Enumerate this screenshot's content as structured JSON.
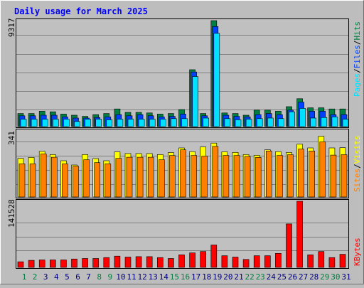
{
  "title": "Daily usage for March 2025",
  "colors": {
    "hits": "#008040",
    "files": "#0040ff",
    "pages": "#00e0ff",
    "visits": "#ffff00",
    "sites": "#ff8000",
    "kbytes": "#ff0000",
    "weekday_label": "#000080",
    "weekend_label": "#008040",
    "title": "#0000ff"
  },
  "chart_data": [
    {
      "type": "bar",
      "panel": "hits_files_pages",
      "y_tick_label": "9317",
      "ylim": [
        0,
        9317
      ],
      "legend": [
        {
          "text": "Pages",
          "color": "#00e0ff"
        },
        {
          "text": "/",
          "color": "#000000"
        },
        {
          "text": "Files",
          "color": "#0040ff"
        },
        {
          "text": "/",
          "color": "#000000"
        },
        {
          "text": "Hits",
          "color": "#008040"
        }
      ],
      "categories": [
        "1",
        "2",
        "3",
        "4",
        "5",
        "6",
        "7",
        "8",
        "9",
        "10",
        "11",
        "12",
        "13",
        "14",
        "15",
        "16",
        "17",
        "18",
        "19",
        "20",
        "21",
        "22",
        "23",
        "24",
        "25",
        "26",
        "27",
        "28",
        "29",
        "30",
        "31"
      ],
      "series": [
        {
          "name": "Hits",
          "values": [
            1150,
            1150,
            1350,
            1300,
            1100,
            1000,
            900,
            1050,
            1150,
            1550,
            1250,
            1250,
            1200,
            1100,
            1150,
            1500,
            5000,
            1150,
            9317,
            1200,
            1150,
            1000,
            1450,
            1450,
            1350,
            1750,
            2450,
            1650,
            1650,
            1550,
            1550
          ]
        },
        {
          "name": "Files",
          "values": [
            950,
            950,
            1000,
            1000,
            850,
            750,
            750,
            800,
            850,
            1050,
            950,
            1050,
            950,
            850,
            900,
            1100,
            4800,
            950,
            8800,
            1000,
            900,
            850,
            1050,
            1150,
            1050,
            1450,
            2150,
            1350,
            1350,
            1050,
            1050
          ]
        },
        {
          "name": "Pages",
          "values": [
            650,
            650,
            650,
            650,
            650,
            450,
            650,
            650,
            600,
            650,
            650,
            650,
            650,
            650,
            700,
            700,
            4400,
            750,
            8200,
            700,
            600,
            650,
            700,
            750,
            700,
            1300,
            1600,
            750,
            800,
            850,
            650
          ]
        }
      ]
    },
    {
      "type": "bar",
      "panel": "visits_sites",
      "y_tick_label": "341",
      "ylim": [
        0,
        341
      ],
      "legend": [
        {
          "text": "Sites",
          "color": "#ff8000"
        },
        {
          "text": "/",
          "color": "#000000"
        },
        {
          "text": "Visits",
          "color": "#ffff00"
        }
      ],
      "categories": [
        "1",
        "2",
        "3",
        "4",
        "5",
        "6",
        "7",
        "8",
        "9",
        "10",
        "11",
        "12",
        "13",
        "14",
        "15",
        "16",
        "17",
        "18",
        "19",
        "20",
        "21",
        "22",
        "23",
        "24",
        "25",
        "26",
        "27",
        "28",
        "29",
        "30",
        "31"
      ],
      "series": [
        {
          "name": "Visits",
          "values": [
            199,
            204,
            235,
            219,
            187,
            165,
            219,
            198,
            187,
            233,
            224,
            224,
            224,
            219,
            229,
            253,
            234,
            258,
            278,
            233,
            230,
            219,
            215,
            243,
            234,
            230,
            272,
            253,
            313,
            253,
            254
          ]
        },
        {
          "name": "Sites",
          "values": [
            171,
            171,
            222,
            205,
            171,
            159,
            192,
            177,
            171,
            199,
            205,
            205,
            205,
            192,
            214,
            243,
            214,
            211,
            261,
            214,
            214,
            209,
            204,
            237,
            214,
            218,
            247,
            237,
            284,
            216,
            218
          ]
        }
      ]
    },
    {
      "type": "bar",
      "panel": "kbytes",
      "y_tick_label": "141528",
      "ylim": [
        0,
        141528
      ],
      "legend": [
        {
          "text": "KBytes",
          "color": "#ff0000"
        }
      ],
      "categories": [
        "1",
        "2",
        "3",
        "4",
        "5",
        "6",
        "7",
        "8",
        "9",
        "10",
        "11",
        "12",
        "13",
        "14",
        "15",
        "16",
        "17",
        "18",
        "19",
        "20",
        "21",
        "22",
        "23",
        "24",
        "25",
        "26",
        "27",
        "28",
        "29",
        "30",
        "31"
      ],
      "series": [
        {
          "name": "KBytes",
          "values": [
            12000,
            15000,
            16000,
            16000,
            16000,
            18000,
            19000,
            19000,
            21000,
            24000,
            22000,
            23000,
            23000,
            21000,
            19000,
            27000,
            31000,
            34000,
            48000,
            25000,
            22000,
            17000,
            25000,
            25000,
            30000,
            93000,
            141528,
            27000,
            34000,
            21000,
            28000
          ]
        }
      ]
    }
  ],
  "day_labels": [
    {
      "text": "1",
      "weekend": true
    },
    {
      "text": "2",
      "weekend": true
    },
    {
      "text": "3",
      "weekend": false
    },
    {
      "text": "4",
      "weekend": false
    },
    {
      "text": "5",
      "weekend": false
    },
    {
      "text": "6",
      "weekend": false
    },
    {
      "text": "7",
      "weekend": false
    },
    {
      "text": "8",
      "weekend": true
    },
    {
      "text": "9",
      "weekend": true
    },
    {
      "text": "10",
      "weekend": false
    },
    {
      "text": "11",
      "weekend": false
    },
    {
      "text": "12",
      "weekend": false
    },
    {
      "text": "13",
      "weekend": false
    },
    {
      "text": "14",
      "weekend": false
    },
    {
      "text": "15",
      "weekend": true
    },
    {
      "text": "16",
      "weekend": true
    },
    {
      "text": "17",
      "weekend": false
    },
    {
      "text": "18",
      "weekend": false
    },
    {
      "text": "19",
      "weekend": false
    },
    {
      "text": "20",
      "weekend": false
    },
    {
      "text": "21",
      "weekend": false
    },
    {
      "text": "22",
      "weekend": true
    },
    {
      "text": "23",
      "weekend": true
    },
    {
      "text": "24",
      "weekend": false
    },
    {
      "text": "25",
      "weekend": false
    },
    {
      "text": "26",
      "weekend": false
    },
    {
      "text": "27",
      "weekend": false
    },
    {
      "text": "28",
      "weekend": false
    },
    {
      "text": "29",
      "weekend": true
    },
    {
      "text": "30",
      "weekend": true
    },
    {
      "text": "31",
      "weekend": false
    }
  ]
}
